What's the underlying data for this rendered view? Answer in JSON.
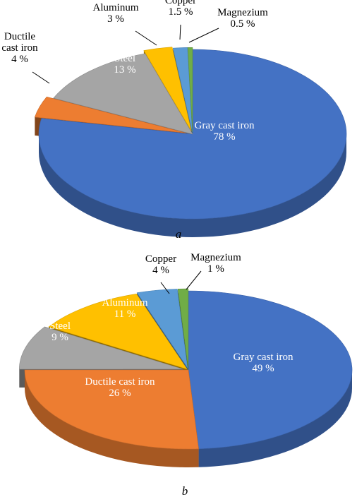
{
  "colors": {
    "gray_cast_iron": "#4472C4",
    "ductile_cast_iron": "#ED7D31",
    "steel": "#A5A5A5",
    "aluminum": "#FFC000",
    "copper": "#5B9BD5",
    "magnezium": "#70AD47"
  },
  "chart_data": [
    {
      "type": "pie",
      "caption": "a",
      "categories": [
        "Gray cast iron",
        "Ductile cast iron",
        "Steel",
        "Aluminum",
        "Copper",
        "Magnezium"
      ],
      "values": [
        78,
        4,
        13,
        3,
        1.5,
        0.5
      ],
      "unit": "%",
      "labels": [
        {
          "name": "Gray cast iron",
          "value": "78 %"
        },
        {
          "name": "Ductile cast iron",
          "name_lines": [
            "Ductile",
            "cast iron"
          ],
          "value": "4 %"
        },
        {
          "name": "Steel",
          "value": "13 %"
        },
        {
          "name": "Aluminum",
          "value": "3 %"
        },
        {
          "name": "Copper",
          "value": "1.5 %"
        },
        {
          "name": "Magnezium",
          "value": "0.5 %"
        }
      ]
    },
    {
      "type": "pie",
      "caption": "b",
      "categories": [
        "Gray cast iron",
        "Ductile cast iron",
        "Steel",
        "Aluminum",
        "Copper",
        "Magnezium"
      ],
      "values": [
        49,
        26,
        9,
        11,
        4,
        1
      ],
      "unit": "%",
      "labels": [
        {
          "name": "Gray cast iron",
          "value": "49 %"
        },
        {
          "name": "Ductile cast iron",
          "value": "26 %"
        },
        {
          "name": "Steel",
          "value": "9 %"
        },
        {
          "name": "Aluminum",
          "value": "11 %"
        },
        {
          "name": "Copper",
          "value": "4 %"
        },
        {
          "name": "Magnezium",
          "value": "1 %"
        }
      ]
    }
  ]
}
